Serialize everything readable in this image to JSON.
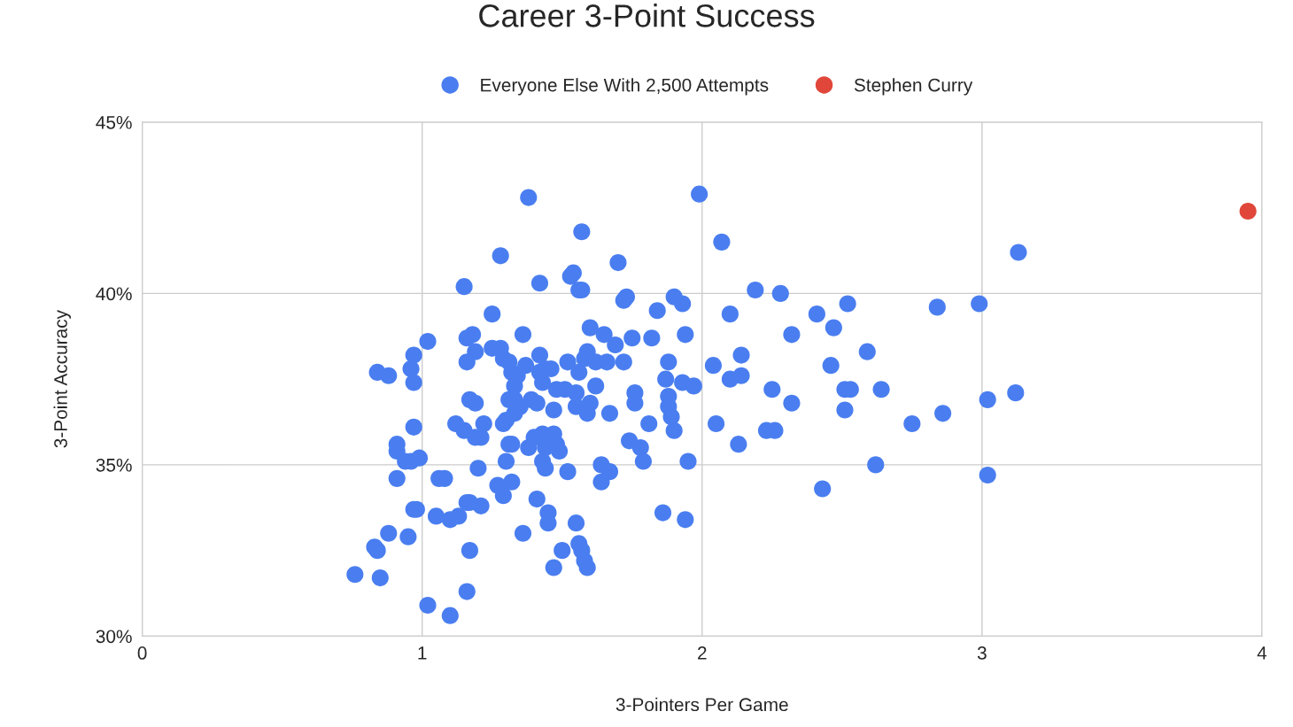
{
  "chart_data": {
    "type": "scatter",
    "title": "Career 3-Point Success",
    "xlabel": "3-Pointers Per Game",
    "ylabel": "3-Point Accuracy",
    "xlim": [
      0,
      4
    ],
    "xticks": [
      0,
      1,
      2,
      3,
      4
    ],
    "ylim": [
      30,
      45
    ],
    "yticks": [
      {
        "value": 30,
        "label": "30%"
      },
      {
        "value": 35,
        "label": "35%"
      },
      {
        "value": 40,
        "label": "40%"
      },
      {
        "value": 45,
        "label": "45%"
      }
    ],
    "grid": true,
    "legend": "top",
    "marker": "circle",
    "series": [
      {
        "name": "Everyone Else With 2,500 Attempts",
        "color": "#4a7ef0",
        "x": [
          0.76,
          0.85,
          0.83,
          0.84,
          0.88,
          0.95,
          0.84,
          0.88,
          0.97,
          0.96,
          0.97,
          1.02,
          0.97,
          0.91,
          0.91,
          0.94,
          0.96,
          0.99,
          0.91,
          0.98,
          0.97,
          1.06,
          1.08,
          1.05,
          1.1,
          1.13,
          1.16,
          1.17,
          1.21,
          1.17,
          1.16,
          1.02,
          1.1,
          1.15,
          1.16,
          1.18,
          1.16,
          1.19,
          1.17,
          1.19,
          1.12,
          1.15,
          1.22,
          1.21,
          1.19,
          1.2,
          1.27,
          1.29,
          1.32,
          1.28,
          1.25,
          1.38,
          1.36,
          1.25,
          1.28,
          1.29,
          1.31,
          1.32,
          1.34,
          1.33,
          1.37,
          1.42,
          1.42,
          1.44,
          1.43,
          1.46,
          1.42,
          1.31,
          1.33,
          1.35,
          1.33,
          1.3,
          1.29,
          1.39,
          1.41,
          1.31,
          1.32,
          1.3,
          1.38,
          1.4,
          1.43,
          1.44,
          1.43,
          1.44,
          1.36,
          1.41,
          1.45,
          1.45,
          1.47,
          1.48,
          1.49,
          1.47,
          1.48,
          1.5,
          1.47,
          1.55,
          1.52,
          1.56,
          1.57,
          1.58,
          1.59,
          1.54,
          1.53,
          1.57,
          1.56,
          1.57,
          1.56,
          1.52,
          1.51,
          1.55,
          1.55,
          1.58,
          1.59,
          1.6,
          1.59,
          1.6,
          1.62,
          1.62,
          1.66,
          1.65,
          1.69,
          1.64,
          1.64,
          1.67,
          1.7,
          1.67,
          1.72,
          1.73,
          1.72,
          1.74,
          1.75,
          1.76,
          1.76,
          1.78,
          1.79,
          1.82,
          1.81,
          1.84,
          1.86,
          1.88,
          1.87,
          1.88,
          1.88,
          1.89,
          1.9,
          1.9,
          1.93,
          1.94,
          1.93,
          1.97,
          1.94,
          1.95,
          1.99,
          2.07,
          2.04,
          2.05,
          2.1,
          2.1,
          2.14,
          2.14,
          2.13,
          2.19,
          2.23,
          2.26,
          2.25,
          2.28,
          2.32,
          2.32,
          2.41,
          2.47,
          2.46,
          2.52,
          2.51,
          2.53,
          2.51,
          2.43,
          2.59,
          2.64,
          2.62,
          2.75,
          2.86,
          2.84,
          2.99,
          3.02,
          3.02,
          3.12,
          3.13
        ],
        "values": [
          31.8,
          31.7,
          32.6,
          32.5,
          33.0,
          32.9,
          37.7,
          37.6,
          38.2,
          37.8,
          37.4,
          38.6,
          36.1,
          35.4,
          35.6,
          35.1,
          35.1,
          35.2,
          34.6,
          33.7,
          33.7,
          34.6,
          34.6,
          33.5,
          33.4,
          33.5,
          33.9,
          33.9,
          33.8,
          32.5,
          31.3,
          30.9,
          30.6,
          40.2,
          38.7,
          38.8,
          38.0,
          38.3,
          36.9,
          36.8,
          36.2,
          36.0,
          36.2,
          35.8,
          35.8,
          34.9,
          34.4,
          34.1,
          34.5,
          41.1,
          39.4,
          42.8,
          38.8,
          38.4,
          38.4,
          38.1,
          38.0,
          37.7,
          37.6,
          37.3,
          37.9,
          38.2,
          37.7,
          37.8,
          37.4,
          37.8,
          40.3,
          36.9,
          36.9,
          36.7,
          36.5,
          36.3,
          36.2,
          36.9,
          36.8,
          35.6,
          35.6,
          35.1,
          35.5,
          35.8,
          35.9,
          35.5,
          35.1,
          34.9,
          33.0,
          34.0,
          33.6,
          33.3,
          35.9,
          35.6,
          35.4,
          36.6,
          37.2,
          32.5,
          32.0,
          33.3,
          34.8,
          32.7,
          32.5,
          32.2,
          32.0,
          40.6,
          40.5,
          41.8,
          40.1,
          40.1,
          37.7,
          38.0,
          37.2,
          37.1,
          36.7,
          38.1,
          38.3,
          39.0,
          36.5,
          36.8,
          37.3,
          38.0,
          38.0,
          38.8,
          38.5,
          35.0,
          34.5,
          34.8,
          40.9,
          36.5,
          39.8,
          39.9,
          38.0,
          35.7,
          38.7,
          37.1,
          36.8,
          35.5,
          35.1,
          38.7,
          36.2,
          39.5,
          33.6,
          38.0,
          37.5,
          37.0,
          36.7,
          36.4,
          36.0,
          39.9,
          39.7,
          38.8,
          37.4,
          37.3,
          33.4,
          35.1,
          42.9,
          41.5,
          37.9,
          36.2,
          39.4,
          37.5,
          37.6,
          38.2,
          35.6,
          40.1,
          36.0,
          36.0,
          37.2,
          40.0,
          36.8,
          38.8,
          39.4,
          39.0,
          37.9,
          39.7,
          37.2,
          37.2,
          36.6,
          34.3,
          38.3,
          37.2,
          35.0,
          36.2,
          36.5,
          39.6,
          39.7,
          36.9,
          34.7,
          37.1,
          41.2
        ]
      },
      {
        "name": "Stephen Curry",
        "color": "#e0473a",
        "x": [
          3.95
        ],
        "values": [
          42.4
        ]
      }
    ]
  }
}
